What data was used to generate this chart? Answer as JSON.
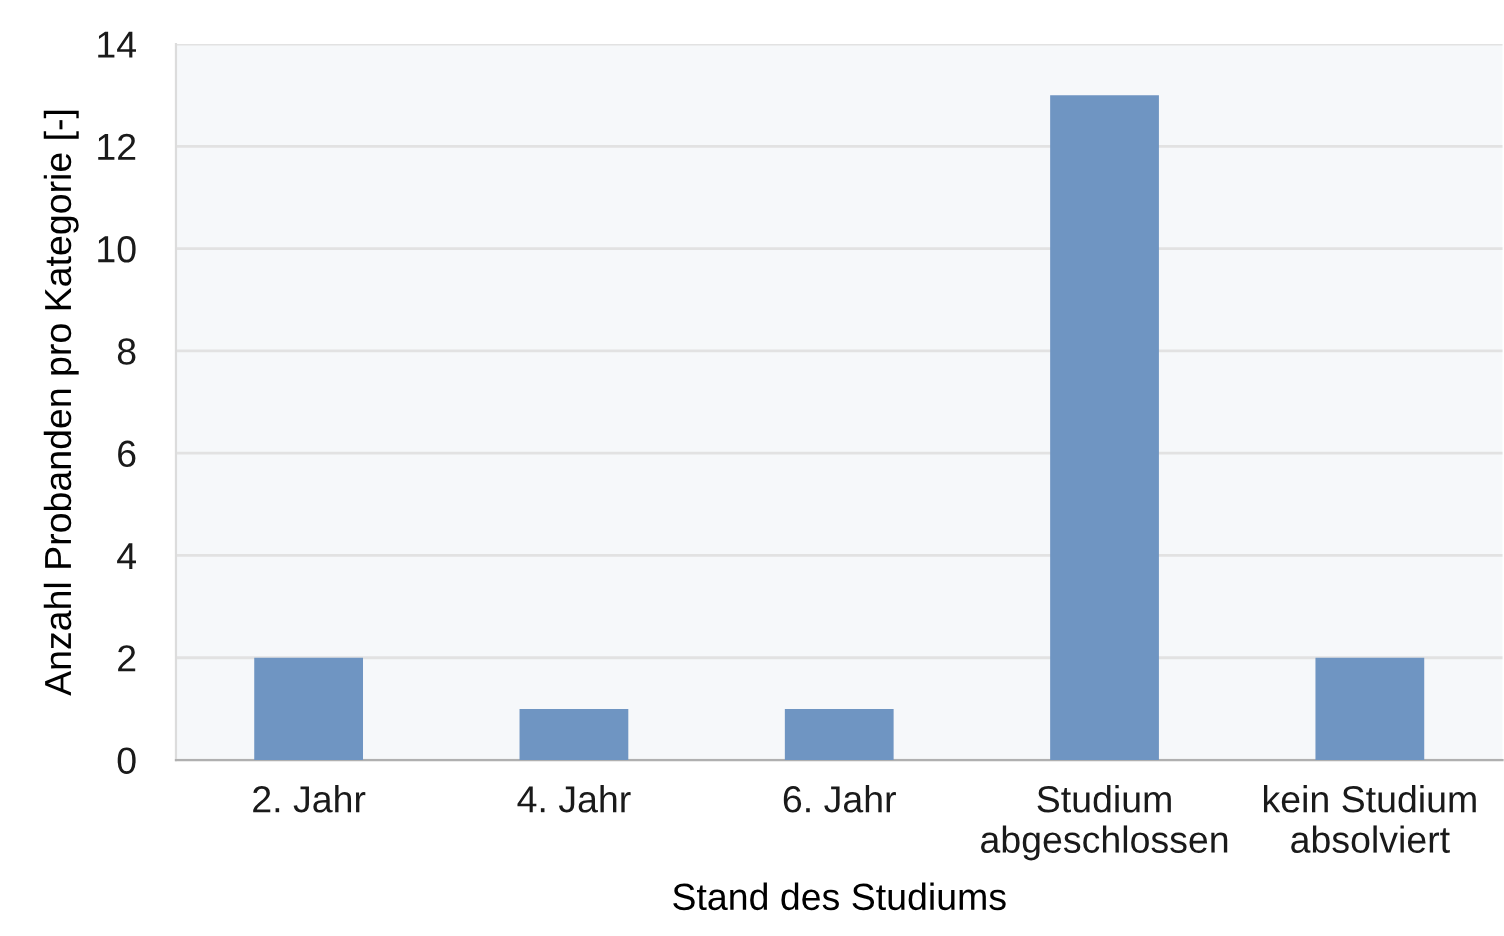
{
  "chart_data": {
    "type": "bar",
    "categories": [
      "2. Jahr",
      "4. Jahr",
      "6. Jahr",
      "Studium\nabgeschlossen",
      "kein Studium\nabsolviert"
    ],
    "values": [
      2,
      1,
      1,
      13,
      2
    ],
    "color": "#6f95c2",
    "xlabel": "Stand des Studiums",
    "ylabel": "Anzahl Probanden pro Kategorie [-]",
    "ylim": [
      0,
      14
    ],
    "yticks": [
      0,
      2,
      4,
      6,
      8,
      10,
      12,
      14
    ],
    "grid": "y"
  }
}
